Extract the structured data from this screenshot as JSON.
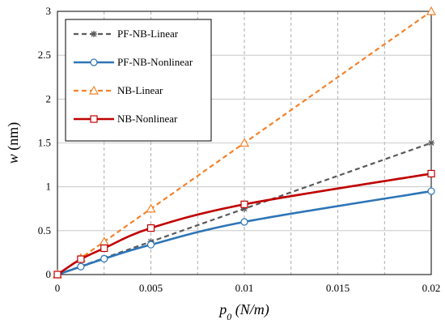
{
  "chart_data": {
    "type": "line",
    "x_axis": {
      "title_main": "p",
      "title_sub": "0",
      "title_rest": " (N/m)",
      "min": 0,
      "max": 0.02,
      "ticks": [
        0,
        0.005,
        0.01,
        0.015,
        0.02
      ],
      "tick_labels": [
        "0",
        "0.005",
        "0.01",
        "0.015",
        "0.02"
      ],
      "minor_step": 0.0025
    },
    "y_axis": {
      "title_main": "w",
      "title_rest": " (nm)",
      "min": 0,
      "max": 3,
      "ticks": [
        0,
        0.5,
        1,
        1.5,
        2,
        2.5,
        3
      ],
      "tick_labels": [
        "0",
        "0.5",
        "1",
        "1.5",
        "2",
        "2.5",
        "3"
      ]
    },
    "grid": true,
    "legend_position": "top-left",
    "series": [
      {
        "name": "PF-NB-Linear",
        "color": "#595959",
        "dash": "dashed",
        "marker": "star",
        "x": [
          0,
          0.00125,
          0.0025,
          0.005,
          0.01,
          0.02
        ],
        "y": [
          0,
          0.094,
          0.188,
          0.375,
          0.75,
          1.5
        ]
      },
      {
        "name": "PF-NB-Nonlinear",
        "color": "#2e75b6",
        "dash": "solid",
        "marker": "circle",
        "x": [
          0,
          0.00125,
          0.0025,
          0.005,
          0.01,
          0.02
        ],
        "y": [
          0,
          0.09,
          0.18,
          0.34,
          0.6,
          0.95
        ]
      },
      {
        "name": "NB-Linear",
        "color": "#f4822a",
        "dash": "dashed",
        "marker": "triangle",
        "x": [
          0,
          0.00125,
          0.0025,
          0.005,
          0.01,
          0.02
        ],
        "y": [
          0,
          0.188,
          0.375,
          0.75,
          1.5,
          3.0
        ]
      },
      {
        "name": "NB-Nonlinear",
        "color": "#c00000",
        "dash": "solid",
        "marker": "square",
        "x": [
          0,
          0.00125,
          0.0025,
          0.005,
          0.01,
          0.02
        ],
        "y": [
          0,
          0.175,
          0.3,
          0.53,
          0.8,
          1.15
        ]
      }
    ]
  }
}
